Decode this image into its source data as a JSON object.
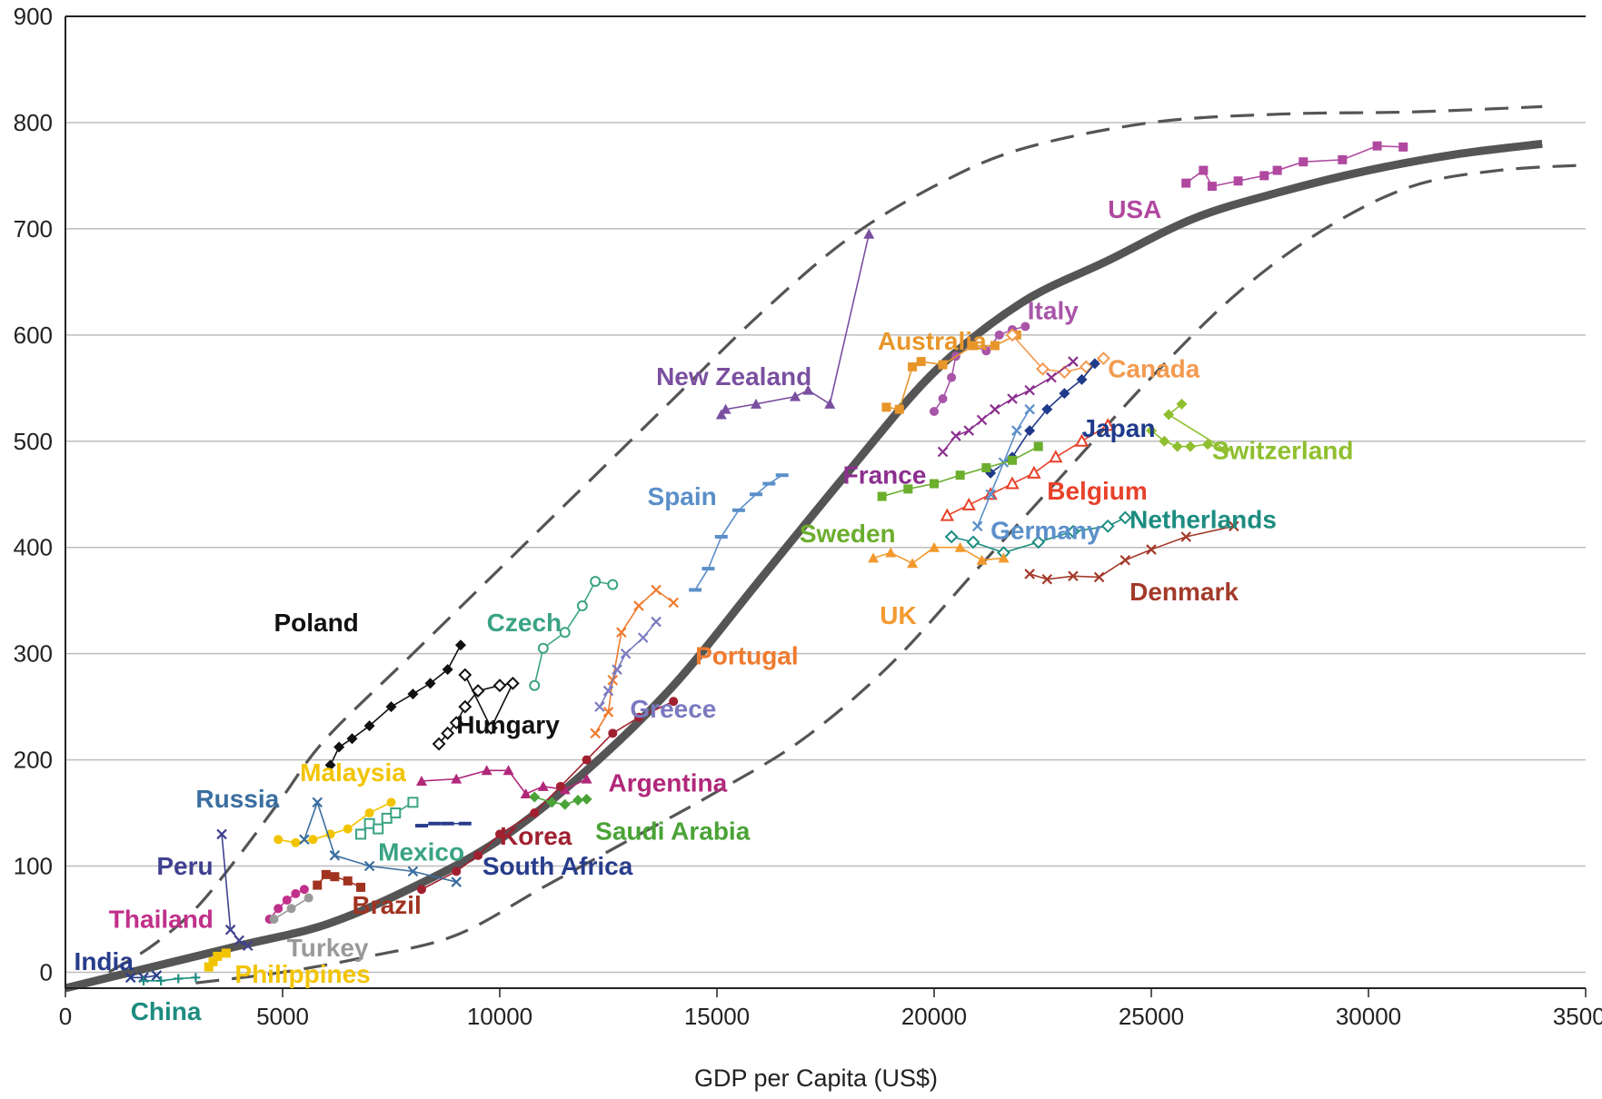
{
  "chart_data": {
    "type": "scatter",
    "title": "",
    "xlabel": "GDP per Capita (US$)",
    "ylabel": "",
    "xlim": [
      0,
      35000
    ],
    "ylim": [
      -15,
      900
    ],
    "x_ticks": [
      "0",
      "5000",
      "10000",
      "15000",
      "20000",
      "25000",
      "30000",
      "35000"
    ],
    "y_ticks": [
      "0",
      "100",
      "200",
      "300",
      "400",
      "500",
      "600",
      "700",
      "800",
      "900"
    ],
    "grid": true,
    "trend_curves": [
      {
        "style": "solid-thick",
        "color": "#555555",
        "x": [
          0,
          2000,
          4000,
          6000,
          8000,
          10000,
          12000,
          14000,
          16000,
          18000,
          20000,
          22000,
          24000,
          26000,
          28000,
          30000,
          32000,
          34000
        ],
        "y": [
          -15,
          5,
          25,
          45,
          80,
          125,
          190,
          270,
          370,
          470,
          565,
          630,
          670,
          710,
          735,
          755,
          770,
          780
        ]
      },
      {
        "style": "dashed",
        "color": "#555555",
        "x": [
          1000,
          2000,
          3000,
          4000,
          5000,
          6000,
          8000,
          10000,
          12000,
          14000,
          16000,
          18000,
          20000,
          22000,
          25000,
          28000,
          31000,
          34000
        ],
        "y": [
          0,
          25,
          60,
          110,
          165,
          220,
          300,
          380,
          460,
          540,
          620,
          690,
          740,
          775,
          800,
          808,
          810,
          815
        ]
      },
      {
        "style": "dashed",
        "color": "#555555",
        "x": [
          3000,
          5000,
          7000,
          9000,
          11000,
          13000,
          15000,
          17000,
          19000,
          21000,
          23000,
          25000,
          27000,
          29000,
          31000,
          33000,
          35000
        ],
        "y": [
          -10,
          0,
          15,
          35,
          80,
          125,
          170,
          220,
          290,
          380,
          470,
          560,
          640,
          700,
          740,
          755,
          760
        ]
      }
    ],
    "series": [
      {
        "name": "USA",
        "color": "#b0489f",
        "marker": "square",
        "label_x": 24000,
        "label_y": 710,
        "x": [
          25800,
          26200,
          26400,
          27000,
          27600,
          27900,
          28500,
          29400,
          30200,
          30800
        ],
        "y": [
          743,
          755,
          740,
          745,
          750,
          755,
          763,
          765,
          778,
          777
        ]
      },
      {
        "name": "Italy",
        "color": "#a855a8",
        "marker": "circle",
        "label_x": 22150,
        "label_y": 615,
        "x": [
          20000,
          20200,
          20400,
          20500,
          20900,
          21200,
          21500,
          21800,
          22100
        ],
        "y": [
          528,
          540,
          560,
          580,
          590,
          585,
          600,
          605,
          608
        ]
      },
      {
        "name": "Australia",
        "color": "#e8962a",
        "marker": "square",
        "label_x": 18700,
        "label_y": 586,
        "x": [
          18900,
          19200,
          19500,
          19700,
          20200,
          20900,
          21400,
          21900
        ],
        "y": [
          532,
          530,
          570,
          575,
          572,
          590,
          590,
          600
        ]
      },
      {
        "name": "New Zealand",
        "color": "#7a4fa0",
        "marker": "triangle",
        "label_x": 13600,
        "label_y": 553,
        "x": [
          15100,
          15200,
          15900,
          16800,
          17100,
          17600,
          18500
        ],
        "y": [
          525,
          530,
          535,
          542,
          548,
          535,
          695
        ]
      },
      {
        "name": "Canada",
        "color": "#f39a4f",
        "marker": "diamond-open",
        "label_x": 24000,
        "label_y": 560,
        "x": [
          21800,
          22500,
          23000,
          23500,
          23900
        ],
        "y": [
          600,
          568,
          565,
          570,
          578
        ]
      },
      {
        "name": "Japan",
        "color": "#1f3a8a",
        "marker": "diamond",
        "label_x": 23400,
        "label_y": 504,
        "x": [
          21300,
          21800,
          22200,
          22600,
          23000,
          23400,
          23700
        ],
        "y": [
          470,
          485,
          510,
          530,
          545,
          558,
          573
        ]
      },
      {
        "name": "France",
        "color": "#8b2f8e",
        "marker": "x",
        "label_x": 17900,
        "label_y": 460,
        "x": [
          20200,
          20500,
          20800,
          21100,
          21400,
          21800,
          22200,
          22700,
          23200
        ],
        "y": [
          490,
          505,
          510,
          520,
          530,
          540,
          548,
          560,
          575
        ]
      },
      {
        "name": "Switzerland",
        "color": "#8fbf2e",
        "marker": "diamond",
        "label_x": 26400,
        "label_y": 483,
        "x": [
          25000,
          25300,
          25600,
          25900,
          26300,
          26700,
          25400,
          25700
        ],
        "y": [
          510,
          500,
          495,
          495,
          497,
          492,
          525,
          535
        ]
      },
      {
        "name": "Belgium",
        "color": "#e8412a",
        "marker": "triangle-open",
        "label_x": 22600,
        "label_y": 445,
        "x": [
          20300,
          20800,
          21300,
          21800,
          22300,
          22800,
          23400,
          24000
        ],
        "y": [
          430,
          440,
          450,
          460,
          470,
          485,
          500,
          515
        ]
      },
      {
        "name": "Germany",
        "color": "#5b8fc9",
        "marker": "x",
        "label_x": 21300,
        "label_y": 408,
        "x": [
          21000,
          21300,
          21600,
          21900,
          22200
        ],
        "y": [
          420,
          450,
          480,
          510,
          530
        ]
      },
      {
        "name": "Sweden",
        "color": "#6cae2e",
        "marker": "square",
        "label_x": 16900,
        "label_y": 405,
        "x": [
          18800,
          19400,
          20000,
          20600,
          21200,
          21800,
          22400
        ],
        "y": [
          448,
          455,
          460,
          468,
          475,
          482,
          495
        ]
      },
      {
        "name": "Netherlands",
        "color": "#1c8c80",
        "marker": "diamond-open",
        "label_x": 24500,
        "label_y": 418,
        "x": [
          20400,
          20900,
          21600,
          22400,
          23200,
          24000,
          24400
        ],
        "y": [
          410,
          405,
          395,
          405,
          415,
          420,
          428
        ]
      },
      {
        "name": "UK",
        "color": "#f39a2e",
        "marker": "triangle",
        "label_x": 18750,
        "label_y": 328,
        "x": [
          18600,
          19000,
          19500,
          20000,
          20600,
          21100,
          21600
        ],
        "y": [
          390,
          395,
          385,
          400,
          400,
          388,
          390
        ]
      },
      {
        "name": "Denmark",
        "color": "#a33a2a",
        "marker": "x",
        "label_x": 24500,
        "label_y": 350,
        "x": [
          22200,
          22600,
          23200,
          23800,
          24400,
          25000,
          25800,
          26900
        ],
        "y": [
          375,
          370,
          373,
          372,
          388,
          398,
          410,
          420
        ]
      },
      {
        "name": "Spain",
        "color": "#5b8fc9",
        "marker": "dash",
        "label_x": 13400,
        "label_y": 440,
        "x": [
          14500,
          14800,
          15100,
          15500,
          15900,
          16200,
          16500
        ],
        "y": [
          360,
          380,
          410,
          435,
          450,
          460,
          468
        ]
      },
      {
        "name": "Czech",
        "color": "#3aa384",
        "marker": "circle-open",
        "label_x": 9700,
        "label_y": 321,
        "x": [
          10800,
          11000,
          11500,
          11900,
          12200,
          12600
        ],
        "y": [
          270,
          305,
          320,
          345,
          368,
          365
        ]
      },
      {
        "name": "Portugal",
        "color": "#f07a2e",
        "marker": "x",
        "label_x": 14500,
        "label_y": 290,
        "x": [
          12200,
          12500,
          12600,
          12800,
          13200,
          13600,
          14000
        ],
        "y": [
          225,
          245,
          275,
          320,
          345,
          360,
          348
        ]
      },
      {
        "name": "Greece",
        "color": "#7a7ac0",
        "marker": "x",
        "label_x": 13000,
        "label_y": 240,
        "x": [
          12300,
          12500,
          12700,
          12900,
          13300,
          13600
        ],
        "y": [
          250,
          265,
          285,
          300,
          315,
          330
        ]
      },
      {
        "name": "Poland",
        "color": "#111111",
        "marker": "diamond",
        "label_x": 4800,
        "label_y": 321,
        "x": [
          6100,
          6300,
          6600,
          7000,
          7500,
          8000,
          8400,
          8800,
          9100
        ],
        "y": [
          195,
          212,
          220,
          232,
          250,
          262,
          272,
          285,
          308
        ]
      },
      {
        "name": "Hungary",
        "color": "#111111",
        "marker": "diamond-open",
        "label_x": 9000,
        "label_y": 225,
        "x": [
          8600,
          8800,
          9000,
          9200,
          9500,
          10000,
          10300,
          9800,
          9200
        ],
        "y": [
          215,
          225,
          235,
          250,
          265,
          270,
          272,
          230,
          280
        ]
      },
      {
        "name": "Argentina",
        "color": "#b0287a",
        "marker": "triangle",
        "label_x": 12500,
        "label_y": 170,
        "x": [
          8200,
          9000,
          9700,
          10200,
          10600,
          11000,
          11500,
          12000
        ],
        "y": [
          180,
          182,
          190,
          190,
          168,
          175,
          172,
          182
        ]
      },
      {
        "name": "Korea",
        "color": "#a02030",
        "marker": "circle",
        "label_x": 10000,
        "label_y": 120,
        "x": [
          8200,
          9000,
          9500,
          10000,
          10800,
          11400,
          12000,
          12600,
          13200,
          14000
        ],
        "y": [
          78,
          95,
          110,
          130,
          150,
          175,
          200,
          225,
          240,
          255
        ]
      },
      {
        "name": "Saudi Arabia",
        "color": "#4aa336",
        "marker": "diamond",
        "label_x": 12200,
        "label_y": 125,
        "x": [
          10800,
          11200,
          11500,
          11800,
          12000
        ],
        "y": [
          165,
          160,
          158,
          162,
          163
        ]
      },
      {
        "name": "Malaysia",
        "color": "#f2c400",
        "marker": "circle",
        "label_x": 5400,
        "label_y": 180,
        "x": [
          4900,
          5300,
          5700,
          6100,
          6500,
          7000,
          7500
        ],
        "y": [
          125,
          122,
          125,
          130,
          135,
          150,
          160
        ]
      },
      {
        "name": "Russia",
        "color": "#3a6ea0",
        "marker": "x",
        "label_x": 3000,
        "label_y": 155,
        "x": [
          5500,
          5800,
          6200,
          7000,
          8000,
          9000
        ],
        "y": [
          125,
          160,
          110,
          100,
          95,
          85
        ]
      },
      {
        "name": "Mexico",
        "color": "#3aa384",
        "marker": "square-open",
        "label_x": 7200,
        "label_y": 105,
        "x": [
          6800,
          7000,
          7200,
          7400,
          7600,
          8000
        ],
        "y": [
          130,
          140,
          135,
          145,
          150,
          160
        ]
      },
      {
        "name": "South Africa",
        "color": "#283c8c",
        "marker": "dash",
        "label_x": 9600,
        "label_y": 92,
        "x": [
          8200,
          8500,
          8800,
          9200
        ],
        "y": [
          138,
          140,
          140,
          140
        ]
      },
      {
        "name": "Peru",
        "color": "#404090",
        "marker": "x",
        "label_x": 2100,
        "label_y": 92,
        "x": [
          3600,
          3800,
          4000,
          4200
        ],
        "y": [
          130,
          40,
          30,
          25
        ]
      },
      {
        "name": "Brazil",
        "color": "#a03320",
        "marker": "square",
        "label_x": 6600,
        "label_y": 55,
        "x": [
          5800,
          6000,
          6200,
          6500,
          6800
        ],
        "y": [
          82,
          92,
          90,
          86,
          80
        ]
      },
      {
        "name": "Thailand",
        "color": "#c0308a",
        "marker": "circle",
        "label_x": 1000,
        "label_y": 42,
        "x": [
          4700,
          4900,
          5100,
          5300,
          5500
        ],
        "y": [
          50,
          60,
          68,
          74,
          78
        ]
      },
      {
        "name": "Turkey",
        "color": "#999999",
        "marker": "circle",
        "label_x": 5100,
        "label_y": 15,
        "x": [
          4800,
          5200,
          5600
        ],
        "y": [
          50,
          60,
          70
        ]
      },
      {
        "name": "India",
        "color": "#283c8c",
        "marker": "x",
        "label_x": 200,
        "label_y": 2,
        "x": [
          1500,
          1800,
          2100
        ],
        "y": [
          -5,
          -5,
          -3
        ]
      },
      {
        "name": "Philippines",
        "color": "#f2c400",
        "marker": "square",
        "label_x": 3900,
        "label_y": -10,
        "x": [
          3300,
          3400,
          3500,
          3700
        ],
        "y": [
          5,
          10,
          15,
          18
        ]
      },
      {
        "name": "China",
        "color": "#1c8c80",
        "marker": "plus",
        "label_x": 1500,
        "label_y": -45,
        "x": [
          1800,
          2200,
          2600,
          3000
        ],
        "y": [
          -8,
          -8,
          -6,
          -5
        ]
      }
    ]
  }
}
